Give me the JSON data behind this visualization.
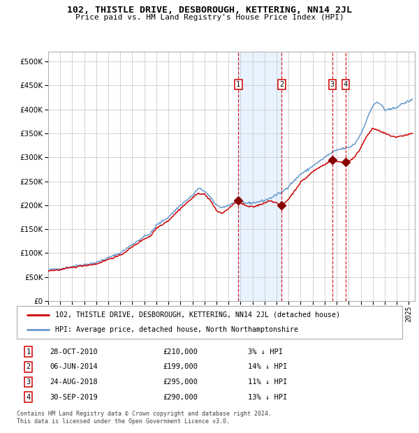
{
  "title": "102, THISTLE DRIVE, DESBOROUGH, KETTERING, NN14 2JL",
  "subtitle": "Price paid vs. HM Land Registry's House Price Index (HPI)",
  "legend_property": "102, THISTLE DRIVE, DESBOROUGH, KETTERING, NN14 2JL (detached house)",
  "legend_hpi": "HPI: Average price, detached house, North Northamptonshire",
  "footer_line1": "Contains HM Land Registry data © Crown copyright and database right 2024.",
  "footer_line2": "This data is licensed under the Open Government Licence v3.0.",
  "transactions": [
    {
      "num": 1,
      "date": "28-OCT-2010",
      "price": 210000,
      "pct": "3%",
      "x_year": 2010.82
    },
    {
      "num": 2,
      "date": "06-JUN-2014",
      "price": 199000,
      "pct": "14%",
      "x_year": 2014.43
    },
    {
      "num": 3,
      "date": "24-AUG-2018",
      "price": 295000,
      "pct": "11%",
      "x_year": 2018.64
    },
    {
      "num": 4,
      "date": "30-SEP-2019",
      "price": 290000,
      "pct": "13%",
      "x_year": 2019.75
    }
  ],
  "shaded_region": [
    2010.82,
    2014.43
  ],
  "property_color": "#cc0000",
  "hpi_color": "#6699cc",
  "grid_color": "#cccccc",
  "ylim": [
    0,
    520000
  ],
  "xlim_start": 1995,
  "xlim_end": 2025.5,
  "yticks": [
    0,
    50000,
    100000,
    150000,
    200000,
    250000,
    300000,
    350000,
    400000,
    450000,
    500000
  ],
  "hpi_anchors": [
    [
      1995.0,
      65000
    ],
    [
      1996.0,
      67000
    ],
    [
      1997.0,
      72000
    ],
    [
      1998.0,
      76000
    ],
    [
      1999.0,
      80000
    ],
    [
      2000.0,
      90000
    ],
    [
      2001.0,
      100000
    ],
    [
      2002.0,
      118000
    ],
    [
      2003.0,
      135000
    ],
    [
      2003.5,
      140000
    ],
    [
      2004.0,
      158000
    ],
    [
      2005.0,
      175000
    ],
    [
      2006.0,
      200000
    ],
    [
      2007.0,
      220000
    ],
    [
      2007.5,
      235000
    ],
    [
      2008.0,
      230000
    ],
    [
      2008.5,
      215000
    ],
    [
      2009.0,
      200000
    ],
    [
      2009.5,
      195000
    ],
    [
      2010.0,
      200000
    ],
    [
      2010.5,
      205000
    ],
    [
      2011.0,
      208000
    ],
    [
      2011.5,
      204000
    ],
    [
      2012.0,
      205000
    ],
    [
      2012.5,
      207000
    ],
    [
      2013.0,
      210000
    ],
    [
      2013.5,
      215000
    ],
    [
      2014.0,
      222000
    ],
    [
      2014.5,
      228000
    ],
    [
      2015.0,
      240000
    ],
    [
      2015.5,
      252000
    ],
    [
      2016.0,
      265000
    ],
    [
      2016.5,
      272000
    ],
    [
      2017.0,
      282000
    ],
    [
      2017.5,
      290000
    ],
    [
      2018.0,
      300000
    ],
    [
      2018.5,
      308000
    ],
    [
      2019.0,
      315000
    ],
    [
      2019.5,
      318000
    ],
    [
      2020.0,
      320000
    ],
    [
      2020.5,
      328000
    ],
    [
      2021.0,
      348000
    ],
    [
      2021.5,
      378000
    ],
    [
      2022.0,
      408000
    ],
    [
      2022.3,
      415000
    ],
    [
      2022.8,
      408000
    ],
    [
      2023.0,
      398000
    ],
    [
      2023.5,
      400000
    ],
    [
      2024.0,
      405000
    ],
    [
      2024.5,
      412000
    ],
    [
      2025.3,
      420000
    ]
  ],
  "prop_anchors": [
    [
      1995.0,
      63000
    ],
    [
      1996.0,
      65000
    ],
    [
      1997.0,
      70000
    ],
    [
      1998.0,
      74000
    ],
    [
      1999.0,
      77000
    ],
    [
      2000.0,
      87000
    ],
    [
      2001.0,
      95000
    ],
    [
      2002.0,
      113000
    ],
    [
      2003.0,
      130000
    ],
    [
      2003.5,
      135000
    ],
    [
      2004.0,
      152000
    ],
    [
      2005.0,
      168000
    ],
    [
      2006.0,
      193000
    ],
    [
      2007.0,
      215000
    ],
    [
      2007.5,
      225000
    ],
    [
      2008.0,
      223000
    ],
    [
      2008.5,
      210000
    ],
    [
      2009.0,
      188000
    ],
    [
      2009.5,
      183000
    ],
    [
      2010.0,
      193000
    ],
    [
      2010.82,
      210000
    ],
    [
      2011.0,
      205000
    ],
    [
      2011.5,
      198000
    ],
    [
      2012.0,
      196000
    ],
    [
      2012.5,
      200000
    ],
    [
      2013.0,
      205000
    ],
    [
      2013.5,
      210000
    ],
    [
      2014.43,
      199000
    ],
    [
      2015.0,
      213000
    ],
    [
      2015.5,
      230000
    ],
    [
      2016.0,
      248000
    ],
    [
      2016.5,
      258000
    ],
    [
      2017.0,
      270000
    ],
    [
      2017.5,
      278000
    ],
    [
      2018.0,
      285000
    ],
    [
      2018.64,
      295000
    ],
    [
      2019.0,
      291000
    ],
    [
      2019.75,
      290000
    ],
    [
      2020.0,
      292000
    ],
    [
      2020.5,
      300000
    ],
    [
      2021.0,
      320000
    ],
    [
      2021.5,
      345000
    ],
    [
      2022.0,
      360000
    ],
    [
      2022.3,
      358000
    ],
    [
      2022.5,
      355000
    ],
    [
      2023.0,
      350000
    ],
    [
      2023.5,
      345000
    ],
    [
      2024.0,
      342000
    ],
    [
      2024.5,
      345000
    ],
    [
      2025.3,
      350000
    ]
  ]
}
